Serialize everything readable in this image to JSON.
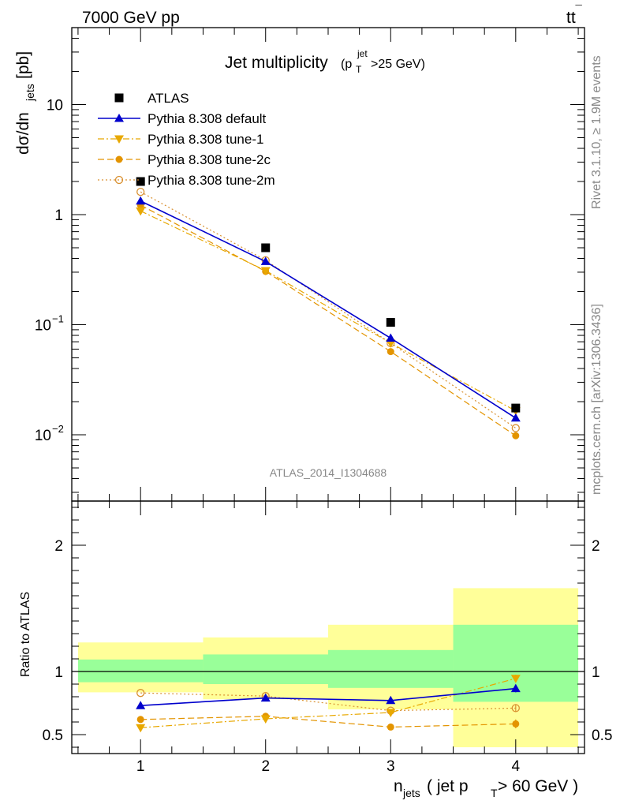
{
  "header": {
    "left": "7000 GeV pp",
    "right_main": "tt",
    "right_bar": "¯"
  },
  "side": {
    "rivet": "Rivet 3.1.10, ≥ 1.9M events",
    "mcplots": "mcplots.cern.ch [arXiv:1306.3436]"
  },
  "chart_data": [
    {
      "type": "scatter",
      "title": "Jet multiplicity",
      "title_cut": {
        "open": "(p",
        "sub": "T",
        "sup": "jet",
        "close": ">25 GeV)"
      },
      "watermark": "ATLAS_2014_I1304688",
      "ylabel": {
        "main": "dσ/dn",
        "sub": "jets",
        "unit": " [pb]"
      },
      "yscale": "log",
      "ylim": [
        0.0025,
        50
      ],
      "xlim": [
        0.45,
        4.55
      ],
      "x": [
        1,
        2,
        3,
        4
      ],
      "yticks": [
        {
          "value": 10,
          "label": "10"
        },
        {
          "value": 1,
          "label": "1"
        },
        {
          "value": 0.1,
          "label": "10",
          "exp": "−1"
        },
        {
          "value": 0.01,
          "label": "10",
          "exp": "−2"
        }
      ],
      "legend_position": "top-left",
      "series": [
        {
          "name": "ATLAS",
          "marker": "square",
          "color": "#000000",
          "line": "none",
          "values": [
            2.0,
            0.5,
            0.105,
            0.0175
          ]
        },
        {
          "name": "Pythia 8.308 default",
          "marker": "triangle-up",
          "color": "#0000cc",
          "line": "solid",
          "values": [
            1.33,
            0.375,
            0.0755,
            0.0142
          ]
        },
        {
          "name": "Pythia 8.308 tune-1",
          "marker": "triangle-down",
          "color": "#e8a800",
          "line": "dashdot",
          "values": [
            1.08,
            0.31,
            0.068,
            0.0165
          ]
        },
        {
          "name": "Pythia 8.308 tune-2c",
          "marker": "circle",
          "color": "#e39400",
          "line": "dashed",
          "values": [
            1.22,
            0.305,
            0.057,
            0.0098
          ]
        },
        {
          "name": "Pythia 8.308 tune-2m",
          "marker": "open-circle",
          "color": "#d99030",
          "line": "dotted",
          "values": [
            1.61,
            0.385,
            0.068,
            0.0115
          ]
        }
      ]
    },
    {
      "type": "scatter",
      "ylabel": "Ratio to ATLAS",
      "xlabel": {
        "main": "n",
        "sub": "jets",
        "mid": " ( jet p",
        "sub2": "T",
        "end": " > 60 GeV )"
      },
      "ylim": [
        0.35,
        2.35
      ],
      "xlim": [
        0.45,
        4.55
      ],
      "xticks": [
        "1",
        "2",
        "3",
        "4"
      ],
      "yticks": [
        {
          "value": 0.5,
          "label": "0.5"
        },
        {
          "value": 1,
          "label": "1"
        },
        {
          "value": 2,
          "label": "2"
        }
      ],
      "bands": [
        {
          "x0": 0.5,
          "x1": 1.5,
          "yellow": [
            0.835,
            1.23
          ],
          "green": [
            0.915,
            1.095
          ]
        },
        {
          "x0": 1.5,
          "x1": 2.5,
          "yellow": [
            0.78,
            1.27
          ],
          "green": [
            0.9,
            1.135
          ]
        },
        {
          "x0": 2.5,
          "x1": 3.5,
          "yellow": [
            0.7,
            1.37
          ],
          "green": [
            0.87,
            1.17
          ]
        },
        {
          "x0": 3.5,
          "x1": 4.5,
          "yellow": [
            0.4,
            1.66
          ],
          "green": [
            0.76,
            1.37
          ]
        }
      ],
      "band_colors": {
        "yellow": "#ffff99",
        "green": "#99ff99"
      },
      "series": [
        {
          "name": "Pythia 8.308 default",
          "values": [
            0.73,
            0.79,
            0.77,
            0.865
          ],
          "errors": [
            0,
            0,
            0,
            0.03
          ]
        },
        {
          "name": "Pythia 8.308 tune-1",
          "values": [
            0.555,
            0.625,
            0.675,
            0.945
          ],
          "errors": [
            0,
            0,
            0,
            0.03
          ]
        },
        {
          "name": "Pythia 8.308 tune-2c",
          "values": [
            0.62,
            0.645,
            0.56,
            0.585
          ],
          "errors": [
            0,
            0,
            0,
            0.035
          ]
        },
        {
          "name": "Pythia 8.308 tune-2m",
          "values": [
            0.83,
            0.805,
            0.69,
            0.71
          ],
          "errors": [
            0,
            0,
            0,
            0.03
          ]
        }
      ]
    }
  ]
}
